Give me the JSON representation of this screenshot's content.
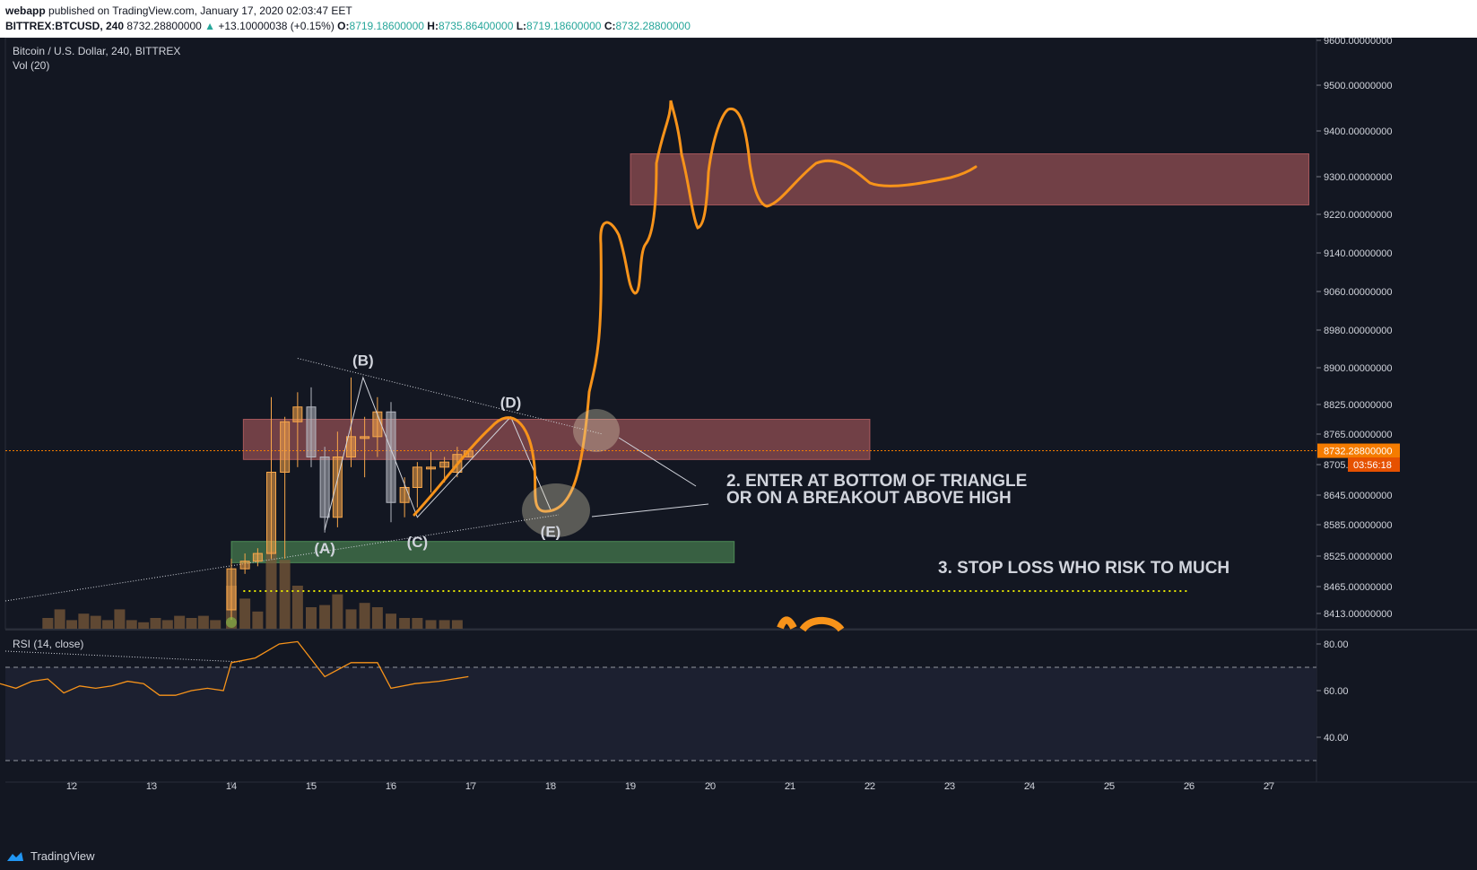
{
  "header": {
    "publisher": "webapp",
    "published_text": "published on TradingView.com, January 17, 2020 02:03:47 EET",
    "symbol": "BITTREX:BTCUSD, 240",
    "last_price": "8732.28800000",
    "change_arrow": "▲",
    "change_text": "+13.10000038 (+0.15%)",
    "o_label": "O:",
    "o_value": "8719.18600000",
    "h_label": "H:",
    "h_value": "8735.86400000",
    "l_label": "L:",
    "l_value": "8719.18600000",
    "c_label": "C:",
    "c_value": "8732.28800000"
  },
  "chart_data": {
    "type": "candlestick",
    "title": "Bitcoin / U.S. Dollar, 240, BITTREX",
    "volume_label": "Vol (20)",
    "rsi_label": "RSI (14, close)",
    "x_ticks": [
      "12",
      "13",
      "14",
      "15",
      "16",
      "17",
      "18",
      "19",
      "20",
      "21",
      "22",
      "23",
      "24",
      "25",
      "26",
      "27"
    ],
    "price_ticks": [
      "9600.00000000",
      "9500.00000000",
      "9400.00000000",
      "9300.00000000",
      "9220.00000000",
      "9140.00000000",
      "9060.00000000",
      "8980.00000000",
      "8900.00000000",
      "8825.00000000",
      "8765.00000000",
      "8705.00000000",
      "8645.00000000",
      "8585.00000000",
      "8525.00000000",
      "8465.00000000",
      "8413.00000000"
    ],
    "rsi_ticks": [
      "80.00",
      "60.00",
      "40.00"
    ],
    "current_price_label": "8732.28800000",
    "countdown_label": "03:56:18",
    "candles": [
      {
        "day": 14.0,
        "o": 8420,
        "h": 8520,
        "l": 8400,
        "c": 8500
      },
      {
        "day": 14.17,
        "o": 8500,
        "h": 8530,
        "l": 8490,
        "c": 8515
      },
      {
        "day": 14.33,
        "o": 8515,
        "h": 8540,
        "l": 8505,
        "c": 8530
      },
      {
        "day": 14.5,
        "o": 8530,
        "h": 8840,
        "l": 8520,
        "c": 8690
      },
      {
        "day": 14.67,
        "o": 8690,
        "h": 8800,
        "l": 8520,
        "c": 8790
      },
      {
        "day": 14.83,
        "o": 8790,
        "h": 8850,
        "l": 8700,
        "c": 8820
      },
      {
        "day": 15.0,
        "o": 8820,
        "h": 8860,
        "l": 8700,
        "c": 8720
      },
      {
        "day": 15.17,
        "o": 8720,
        "h": 8740,
        "l": 8570,
        "c": 8600
      },
      {
        "day": 15.33,
        "o": 8600,
        "h": 8770,
        "l": 8580,
        "c": 8720
      },
      {
        "day": 15.5,
        "o": 8720,
        "h": 8880,
        "l": 8700,
        "c": 8760
      },
      {
        "day": 15.67,
        "o": 8760,
        "h": 8800,
        "l": 8680,
        "c": 8760
      },
      {
        "day": 15.83,
        "o": 8760,
        "h": 8840,
        "l": 8720,
        "c": 8810
      },
      {
        "day": 16.0,
        "o": 8810,
        "h": 8830,
        "l": 8590,
        "c": 8630
      },
      {
        "day": 16.17,
        "o": 8630,
        "h": 8680,
        "l": 8600,
        "c": 8660
      },
      {
        "day": 16.33,
        "o": 8660,
        "h": 8710,
        "l": 8620,
        "c": 8700
      },
      {
        "day": 16.5,
        "o": 8700,
        "h": 8730,
        "l": 8650,
        "c": 8700
      },
      {
        "day": 16.67,
        "o": 8700,
        "h": 8720,
        "l": 8670,
        "c": 8710
      },
      {
        "day": 16.83,
        "o": 8690,
        "h": 8740,
        "l": 8680,
        "c": 8725
      },
      {
        "day": 16.97,
        "o": 8720,
        "h": 8736,
        "l": 8719,
        "c": 8732
      }
    ],
    "volume": [
      {
        "day": 11.7,
        "v": 0.25
      },
      {
        "day": 11.85,
        "v": 0.45
      },
      {
        "day": 12.0,
        "v": 0.2
      },
      {
        "day": 12.15,
        "v": 0.35
      },
      {
        "day": 12.3,
        "v": 0.3
      },
      {
        "day": 12.45,
        "v": 0.2
      },
      {
        "day": 12.6,
        "v": 0.45
      },
      {
        "day": 12.75,
        "v": 0.2
      },
      {
        "day": 12.9,
        "v": 0.15
      },
      {
        "day": 13.05,
        "v": 0.25
      },
      {
        "day": 13.2,
        "v": 0.2
      },
      {
        "day": 13.35,
        "v": 0.3
      },
      {
        "day": 13.5,
        "v": 0.25
      },
      {
        "day": 13.65,
        "v": 0.3
      },
      {
        "day": 13.8,
        "v": 0.2
      },
      {
        "day": 14.0,
        "v": 1.0
      },
      {
        "day": 14.17,
        "v": 0.7
      },
      {
        "day": 14.33,
        "v": 0.4
      },
      {
        "day": 14.5,
        "v": 1.8
      },
      {
        "day": 14.67,
        "v": 1.6
      },
      {
        "day": 14.83,
        "v": 1.0
      },
      {
        "day": 15.0,
        "v": 0.5
      },
      {
        "day": 15.17,
        "v": 0.55
      },
      {
        "day": 15.33,
        "v": 0.8
      },
      {
        "day": 15.5,
        "v": 0.45
      },
      {
        "day": 15.67,
        "v": 0.6
      },
      {
        "day": 15.83,
        "v": 0.5
      },
      {
        "day": 16.0,
        "v": 0.35
      },
      {
        "day": 16.17,
        "v": 0.25
      },
      {
        "day": 16.33,
        "v": 0.25
      },
      {
        "day": 16.5,
        "v": 0.2
      },
      {
        "day": 16.67,
        "v": 0.2
      },
      {
        "day": 16.83,
        "v": 0.2
      }
    ],
    "rsi": [
      {
        "day": 11.1,
        "v": 63
      },
      {
        "day": 11.3,
        "v": 61
      },
      {
        "day": 11.5,
        "v": 64
      },
      {
        "day": 11.7,
        "v": 65
      },
      {
        "day": 11.9,
        "v": 59
      },
      {
        "day": 12.1,
        "v": 62
      },
      {
        "day": 12.3,
        "v": 61
      },
      {
        "day": 12.5,
        "v": 62
      },
      {
        "day": 12.7,
        "v": 64
      },
      {
        "day": 12.9,
        "v": 63
      },
      {
        "day": 13.1,
        "v": 58
      },
      {
        "day": 13.3,
        "v": 58
      },
      {
        "day": 13.5,
        "v": 60
      },
      {
        "day": 13.7,
        "v": 61
      },
      {
        "day": 13.9,
        "v": 60
      },
      {
        "day": 14.0,
        "v": 72
      },
      {
        "day": 14.3,
        "v": 74
      },
      {
        "day": 14.6,
        "v": 80
      },
      {
        "day": 14.83,
        "v": 81
      },
      {
        "day": 15.17,
        "v": 66
      },
      {
        "day": 15.5,
        "v": 72
      },
      {
        "day": 15.83,
        "v": 72
      },
      {
        "day": 16.0,
        "v": 61
      },
      {
        "day": 16.3,
        "v": 63
      },
      {
        "day": 16.6,
        "v": 64
      },
      {
        "day": 16.97,
        "v": 66
      }
    ],
    "zones": [
      {
        "name": "upper-resistance-zone",
        "d0": 19.0,
        "d1": 27.5,
        "p0": 9240,
        "p1": 9350,
        "color": "#e57373"
      },
      {
        "name": "triangle-zone",
        "d0": 14.15,
        "d1": 22.0,
        "p0": 8715,
        "p1": 8795,
        "color": "#e57373"
      },
      {
        "name": "support-zone",
        "d0": 14.0,
        "d1": 20.3,
        "p0": 8512,
        "p1": 8553,
        "color": "#66bb6a"
      }
    ],
    "wave_labels": [
      {
        "text": "(B)",
        "day": 15.65,
        "price": 8905
      },
      {
        "text": "(A)",
        "day": 15.17,
        "price": 8530
      },
      {
        "text": "(C)",
        "day": 16.33,
        "price": 8542
      },
      {
        "text": "(D)",
        "day": 17.5,
        "price": 8819
      },
      {
        "text": "(E)",
        "day": 18.0,
        "price": 8562
      }
    ],
    "annotations": [
      "2. ENTER AT BOTTOM OF TRIANGLE",
      "OR ON A BREAKOUT ABOVE  HIGH",
      "3. STOP LOSS WHO RISK TO MUCH"
    ],
    "colors": {
      "background": "#131722",
      "up": "#f7a64a",
      "down": "#b2b5be",
      "drawing": "#f7931a",
      "rsi_line": "#f7931a",
      "price_line": "#f57c00",
      "stop_line": "#e5e500"
    }
  },
  "footer": {
    "brand": "TradingView"
  }
}
